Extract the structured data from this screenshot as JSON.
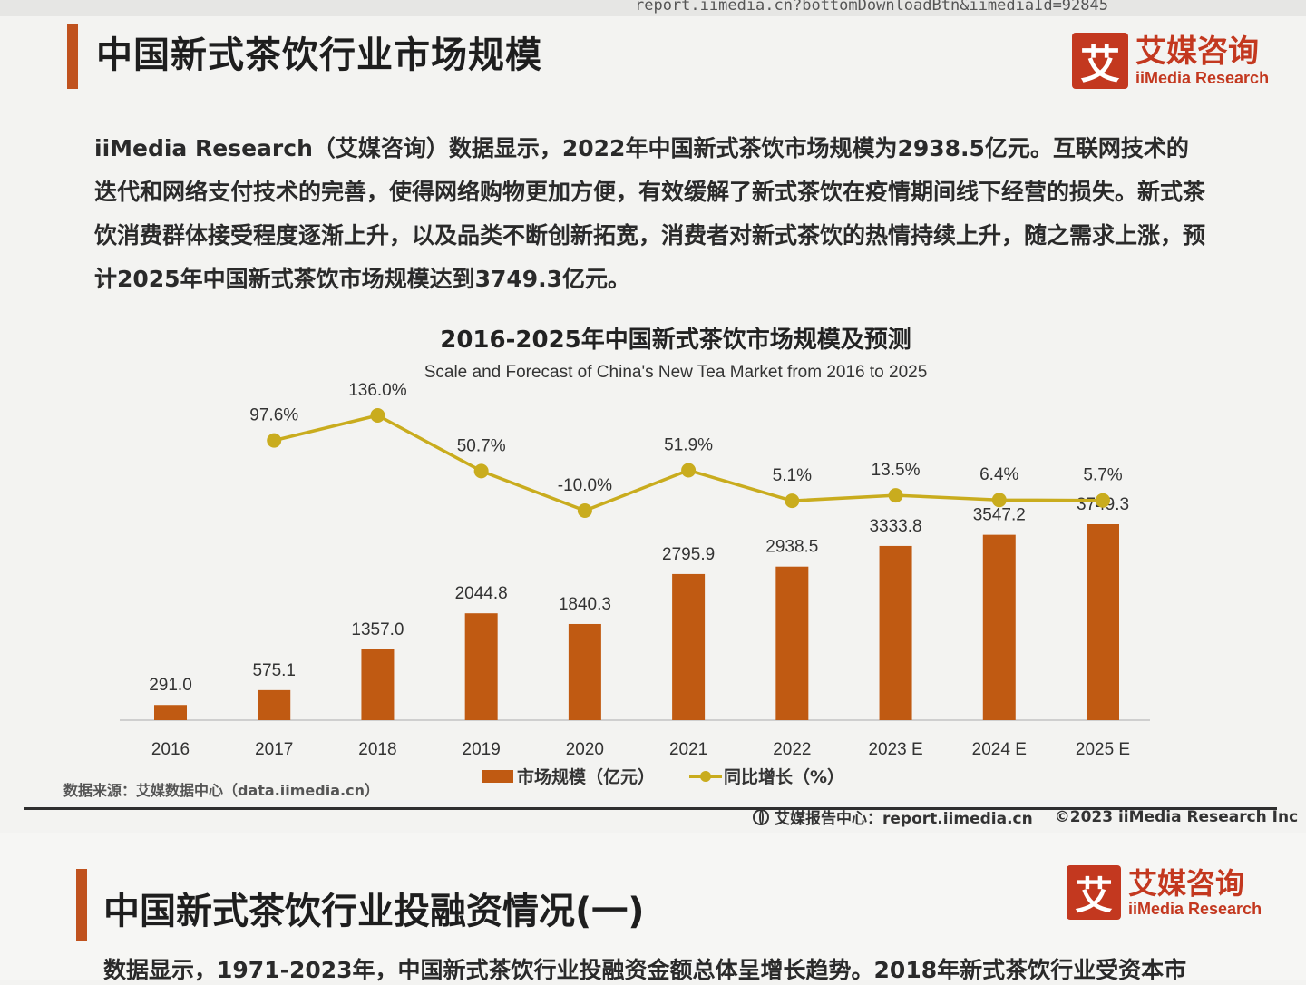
{
  "browser": {
    "url_fragment": "report.iimedia.cn?bottomDownloadBtn&iimediaId=92845"
  },
  "slide": {
    "title": "中国新式茶饮行业市场规模",
    "logo": {
      "mark": "艾",
      "cn": "艾媒咨询",
      "en": "iiMedia Research"
    },
    "lede": "iiMedia Research（艾媒咨询）数据显示，2022年中国新式茶饮市场规模为2938.5亿元。互联网技术的迭代和网络支付技术的完善，使得网络购物更加方便，有效缓解了新式茶饮在疫情期间线下经营的损失。新式茶饮消费群体接受程度逐渐上升，以及品类不断创新拓宽，消费者对新式茶饮的热情持续上升，随之需求上涨，预计2025年中国新式茶饮市场规模达到3749.3亿元。",
    "source": "数据来源：艾媒数据中心（data.iimedia.cn）",
    "footer_site": "艾媒报告中心：report.iimedia.cn",
    "footer_copy": "©2023  iiMedia Research  Inc"
  },
  "chart_data": {
    "type": "bar",
    "title": "2016-2025年中国新式茶饮市场规模及预测",
    "subtitle": "Scale and Forecast of China's New Tea Market from 2016 to 2025",
    "categories": [
      "2016",
      "2017",
      "2018",
      "2019",
      "2020",
      "2021",
      "2022",
      "2023 E",
      "2024 E",
      "2025 E"
    ],
    "series": [
      {
        "name": "市场规模（亿元）",
        "type": "bar",
        "color": "#c05a12",
        "values": [
          291.0,
          575.1,
          1357.0,
          2044.8,
          1840.3,
          2795.9,
          2938.5,
          3333.8,
          3547.2,
          3749.3
        ],
        "labels": [
          "291.0",
          "575.1",
          "1357.0",
          "2044.8",
          "1840.3",
          "2795.9",
          "2938.5",
          "3333.8",
          "3547.2",
          "3749.3"
        ]
      },
      {
        "name": "同比增长（%）",
        "type": "line",
        "color": "#c9ac1e",
        "values": [
          null,
          97.6,
          136.0,
          50.7,
          -10.0,
          51.9,
          5.1,
          13.5,
          6.4,
          5.7
        ],
        "labels": [
          "",
          "97.6%",
          "136.0%",
          "50.7%",
          "-10.0%",
          "51.9%",
          "5.1%",
          "13.5%",
          "6.4%",
          "5.7%"
        ]
      }
    ],
    "legend_position": "bottom",
    "grid": false
  },
  "next_slide": {
    "title": "中国新式茶饮行业投融资情况(一)",
    "logo": {
      "mark": "艾",
      "cn": "艾媒咨询",
      "en": "iiMedia Research"
    },
    "lede": "数据显示，1971-2023年，中国新式茶饮行业投融资金额总体呈增长趋势。2018年新式茶饮行业受资本市"
  }
}
